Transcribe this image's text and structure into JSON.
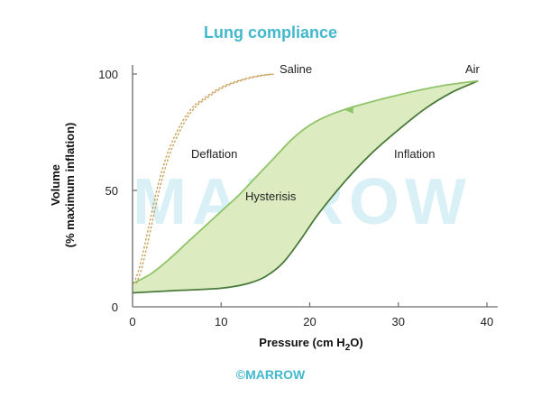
{
  "chart_data": {
    "type": "line",
    "title": "Lung compliance",
    "xlabel_prefix": "Pressure (cm H",
    "xlabel_sub": "2",
    "xlabel_suffix": "O)",
    "ylabel_line1": "Volume",
    "ylabel_line2": "(% maximum inflation)",
    "xlim": [
      0,
      40
    ],
    "ylim": [
      0,
      100
    ],
    "xticks": [
      "0",
      "10",
      "20",
      "30",
      "40"
    ],
    "yticks": [
      "0",
      "50",
      "100"
    ],
    "grid": false,
    "series": [
      {
        "name": "Saline",
        "style": "dashed",
        "color": "#c9a15a",
        "x": [
          0.3,
          1,
          2,
          3,
          4,
          5,
          6,
          7,
          8,
          10,
          12,
          14,
          16
        ],
        "y": [
          10,
          18,
          35,
          52,
          65,
          74,
          81,
          86,
          89,
          94,
          97,
          99,
          100
        ]
      },
      {
        "name": "Inflation",
        "color": "#4a7a3a",
        "x": [
          0,
          5,
          10,
          13,
          15,
          17,
          19,
          21,
          24,
          27,
          30,
          33,
          36,
          39
        ],
        "y": [
          6,
          7,
          8,
          10,
          13,
          19,
          29,
          40,
          54,
          66,
          76,
          85,
          92,
          97
        ]
      },
      {
        "name": "Deflation",
        "color": "#8fc46a",
        "x": [
          39,
          35,
          30,
          25,
          22,
          20,
          18,
          16,
          14,
          12,
          10,
          8,
          6,
          4,
          2,
          0
        ],
        "y": [
          97,
          95,
          91,
          86,
          82,
          78,
          72,
          64,
          56,
          48,
          41,
          34,
          27,
          20,
          14,
          10
        ]
      }
    ],
    "labels": {
      "saline": "Saline",
      "air": "Air",
      "deflation": "Deflation",
      "inflation": "Inflation",
      "hysteresis": "Hysterisis"
    },
    "fill_color": "#dcecc0"
  },
  "watermark": "MARROW",
  "footer": "©MARROW"
}
